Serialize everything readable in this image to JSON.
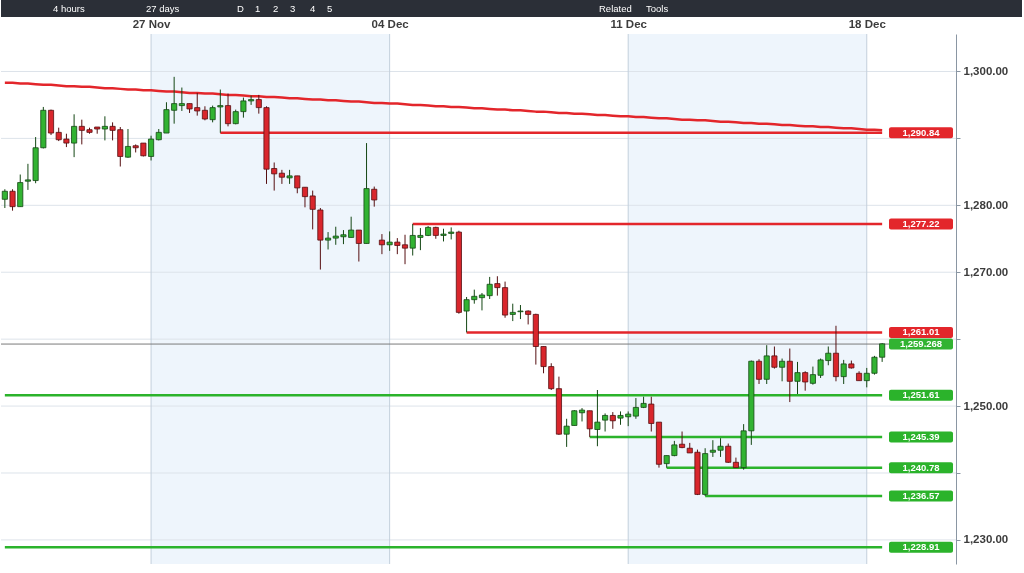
{
  "chart_data": {
    "type": "candlestick",
    "annotations": [
      "4 hours",
      "27 days",
      "D",
      "1",
      "2",
      "3",
      "4",
      "5",
      "Related",
      "Tools"
    ],
    "categories": [
      null,
      null,
      null,
      null,
      null,
      null,
      null,
      null,
      null,
      null,
      null,
      null,
      null,
      null,
      null,
      null,
      null,
      null,
      null,
      "27 Nov",
      null,
      null,
      null,
      null,
      null,
      null,
      null,
      null,
      null,
      null,
      null,
      null,
      null,
      null,
      null,
      null,
      null,
      null,
      null,
      null,
      null,
      null,
      null,
      null,
      null,
      null,
      null,
      null,
      null,
      null,
      "04 Dec",
      null,
      null,
      null,
      null,
      null,
      null,
      null,
      null,
      null,
      null,
      null,
      null,
      null,
      null,
      null,
      null,
      null,
      null,
      null,
      null,
      null,
      null,
      null,
      null,
      null,
      null,
      null,
      null,
      null,
      null,
      "11 Dec",
      null,
      null,
      null,
      null,
      null,
      null,
      null,
      null,
      null,
      null,
      null,
      null,
      null,
      null,
      null,
      null,
      null,
      null,
      null,
      null,
      null,
      null,
      null,
      null,
      null,
      null,
      null,
      null,
      null,
      null,
      "18 Dec",
      null,
      null
    ],
    "ohlc": [
      [
        1280.9,
        1282.4,
        1279.6,
        1282.1
      ],
      [
        1282.1,
        1282.4,
        1279.2,
        1279.8
      ],
      [
        1279.8,
        1284.6,
        1279.8,
        1283.4
      ],
      [
        1283.6,
        1286.2,
        1282.3,
        1283.8
      ],
      [
        1283.7,
        1290.2,
        1283.3,
        1288.6
      ],
      [
        1288.6,
        1294.7,
        1288.5,
        1294.2
      ],
      [
        1294.2,
        1294.3,
        1290.5,
        1290.8
      ],
      [
        1290.9,
        1291.6,
        1289.6,
        1289.8
      ],
      [
        1289.9,
        1290.7,
        1288.7,
        1289.3
      ],
      [
        1289.3,
        1293.6,
        1287.2,
        1291.8
      ],
      [
        1291.8,
        1292.8,
        1289.1,
        1291.2
      ],
      [
        1291.3,
        1291.6,
        1290.7,
        1290.9
      ],
      [
        1291.7,
        1291.7,
        1290.7,
        1291.4
      ],
      [
        1291.4,
        1293.3,
        1289.7,
        1291.8
      ],
      [
        1291.8,
        1292.4,
        1289.7,
        1291.2
      ],
      [
        1291.3,
        1291.7,
        1285.8,
        1287.3
      ],
      [
        1287.2,
        1291.4,
        1287.1,
        1288.8
      ],
      [
        1288.9,
        1289.1,
        1287.9,
        1288.6
      ],
      [
        1289.3,
        1289.3,
        1287.3,
        1287.4
      ],
      [
        1287.3,
        1290.4,
        1286.7,
        1289.9
      ],
      [
        1289.8,
        1291.4,
        1289.7,
        1290.9
      ],
      [
        1290.8,
        1295.4,
        1290.8,
        1294.3
      ],
      [
        1294.2,
        1299.2,
        1292.2,
        1295.2
      ],
      [
        1294.9,
        1297.6,
        1294.1,
        1295.2
      ],
      [
        1295.2,
        1295.2,
        1293.8,
        1294.4
      ],
      [
        1294.6,
        1296.8,
        1293.4,
        1294.1
      ],
      [
        1294.2,
        1294.8,
        1292.7,
        1292.9
      ],
      [
        1292.8,
        1294.9,
        1292.4,
        1294.6
      ],
      [
        1294.7,
        1297.3,
        1290.84,
        1294.9
      ],
      [
        1294.9,
        1296.7,
        1291.8,
        1292.2
      ],
      [
        1292.2,
        1294.3,
        1292.1,
        1294.0
      ],
      [
        1294.0,
        1296.1,
        1293.1,
        1295.6
      ],
      [
        1295.6,
        1296.4,
        1295.0,
        1295.8
      ],
      [
        1295.8,
        1296.5,
        1293.7,
        1294.6
      ],
      [
        1294.6,
        1294.8,
        1283.2,
        1285.4
      ],
      [
        1285.5,
        1286.4,
        1282.2,
        1284.7
      ],
      [
        1284.8,
        1285.3,
        1283.2,
        1284.2
      ],
      [
        1284.1,
        1285.3,
        1283.2,
        1284.4
      ],
      [
        1284.4,
        1284.4,
        1281.8,
        1282.6
      ],
      [
        1282.7,
        1282.7,
        1279.7,
        1281.3
      ],
      [
        1281.4,
        1282.2,
        1276.4,
        1279.4
      ],
      [
        1279.3,
        1279.6,
        1270.4,
        1274.8
      ],
      [
        1274.8,
        1276.0,
        1273.4,
        1275.1
      ],
      [
        1275.1,
        1276.8,
        1274.1,
        1275.4
      ],
      [
        1275.3,
        1276.3,
        1274.2,
        1275.6
      ],
      [
        1275.2,
        1278.3,
        1275.2,
        1276.3
      ],
      [
        1276.3,
        1276.3,
        1271.6,
        1274.3
      ],
      [
        1274.3,
        1289.3,
        1274.3,
        1282.5
      ],
      [
        1282.4,
        1282.8,
        1279.8,
        1280.8
      ],
      [
        1274.8,
        1275.7,
        1272.7,
        1274.1
      ],
      [
        1274.1,
        1276.1,
        1273.2,
        1274.5
      ],
      [
        1274.5,
        1275.1,
        1272.7,
        1274.0
      ],
      [
        1274.1,
        1275.6,
        1271.2,
        1273.6
      ],
      [
        1273.6,
        1277.22,
        1272.5,
        1275.5
      ],
      [
        1275.2,
        1276.6,
        1273.3,
        1275.5
      ],
      [
        1275.5,
        1276.9,
        1275.4,
        1276.7
      ],
      [
        1276.7,
        1276.8,
        1275.0,
        1275.5
      ],
      [
        1275.5,
        1276.5,
        1274.6,
        1275.7
      ],
      [
        1275.8,
        1276.7,
        1274.9,
        1276.0
      ],
      [
        1276.0,
        1276.2,
        1263.8,
        1264.0
      ],
      [
        1264.2,
        1266.3,
        1261.01,
        1265.9
      ],
      [
        1265.9,
        1267.4,
        1265.3,
        1266.4
      ],
      [
        1266.2,
        1266.9,
        1264.3,
        1266.6
      ],
      [
        1266.5,
        1269.3,
        1266.0,
        1268.2
      ],
      [
        1268.3,
        1269.4,
        1266.5,
        1267.7
      ],
      [
        1267.7,
        1268.6,
        1263.2,
        1263.6
      ],
      [
        1263.7,
        1265.3,
        1262.7,
        1264.0
      ],
      [
        1264.1,
        1265.1,
        1263.0,
        1264.2
      ],
      [
        1264.2,
        1264.3,
        1262.2,
        1263.7
      ],
      [
        1263.7,
        1263.8,
        1256.2,
        1258.9
      ],
      [
        1258.9,
        1258.9,
        1254.9,
        1255.9
      ],
      [
        1255.9,
        1256.4,
        1252.4,
        1252.6
      ],
      [
        1252.6,
        1254.4,
        1245.7,
        1245.8
      ],
      [
        1245.8,
        1248.1,
        1243.9,
        1247.0
      ],
      [
        1247.1,
        1249.4,
        1247.1,
        1249.3
      ],
      [
        1249.0,
        1249.7,
        1247.7,
        1249.4
      ],
      [
        1249.3,
        1249.3,
        1245.39,
        1246.6
      ],
      [
        1246.5,
        1252.4,
        1244.0,
        1247.6
      ],
      [
        1247.9,
        1248.9,
        1246.2,
        1248.6
      ],
      [
        1248.6,
        1249.1,
        1246.6,
        1247.8
      ],
      [
        1248.2,
        1249.2,
        1247.2,
        1248.6
      ],
      [
        1248.4,
        1249.2,
        1247.0,
        1248.8
      ],
      [
        1248.5,
        1251.2,
        1248.1,
        1249.8
      ],
      [
        1249.8,
        1251.4,
        1249.7,
        1250.4
      ],
      [
        1250.3,
        1251.4,
        1246.2,
        1247.4
      ],
      [
        1247.6,
        1247.6,
        1240.8,
        1241.3
      ],
      [
        1241.4,
        1242.6,
        1240.78,
        1242.6
      ],
      [
        1242.6,
        1244.8,
        1242.5,
        1244.2
      ],
      [
        1244.3,
        1246.2,
        1243.7,
        1243.8
      ],
      [
        1243.7,
        1244.5,
        1243.0,
        1243.0
      ],
      [
        1243.1,
        1243.5,
        1236.7,
        1236.8
      ],
      [
        1236.8,
        1243.7,
        1236.57,
        1242.9
      ],
      [
        1243.1,
        1244.9,
        1242.4,
        1243.4
      ],
      [
        1243.4,
        1245.2,
        1242.4,
        1244.0
      ],
      [
        1244.0,
        1244.4,
        1241.5,
        1241.6
      ],
      [
        1241.6,
        1242.3,
        1240.8,
        1240.8
      ],
      [
        1240.8,
        1247.3,
        1240.5,
        1246.3
      ],
      [
        1246.3,
        1256.8,
        1244.2,
        1256.7
      ],
      [
        1256.7,
        1257.0,
        1253.3,
        1254.0
      ],
      [
        1254.0,
        1259.1,
        1253.3,
        1257.5
      ],
      [
        1257.5,
        1258.9,
        1255.6,
        1255.8
      ],
      [
        1255.8,
        1257.1,
        1253.7,
        1256.7
      ],
      [
        1256.7,
        1258.6,
        1250.6,
        1253.7
      ],
      [
        1253.7,
        1256.6,
        1251.8,
        1255.0
      ],
      [
        1255.0,
        1255.2,
        1252.3,
        1253.6
      ],
      [
        1253.4,
        1255.9,
        1253.2,
        1254.7
      ],
      [
        1254.6,
        1257.1,
        1254.2,
        1256.9
      ],
      [
        1256.8,
        1258.9,
        1256.1,
        1257.9
      ],
      [
        1257.9,
        1262.0,
        1253.7,
        1254.4
      ],
      [
        1254.4,
        1256.9,
        1253.3,
        1256.3
      ],
      [
        1256.3,
        1256.8,
        1255.6,
        1255.7
      ],
      [
        1254.9,
        1255.2,
        1253.8,
        1253.8
      ],
      [
        1253.8,
        1255.7,
        1252.8,
        1254.9
      ],
      [
        1254.9,
        1257.5,
        1254.7,
        1257.3
      ],
      [
        1257.3,
        1259.4,
        1256.6,
        1259.3
      ]
    ],
    "colors": [
      "#32b332",
      "#d9262c",
      "#32b332",
      "#32b332",
      "#32b332",
      "#32b332",
      "#d9262c",
      "#d9262c",
      "#d9262c",
      "#32b332",
      "#d9262c",
      "#d9262c",
      "#d9262c",
      "#32b332",
      "#d9262c",
      "#d9262c",
      "#32b332",
      "#d9262c",
      "#d9262c",
      "#32b332",
      "#32b332",
      "#32b332",
      "#32b332",
      "#32b332",
      "#d9262c",
      "#d9262c",
      "#d9262c",
      "#32b332",
      "#32b332",
      "#d9262c",
      "#32b332",
      "#32b332",
      "#32b332",
      "#d9262c",
      "#d9262c",
      "#d9262c",
      "#d9262c",
      "#32b332",
      "#d9262c",
      "#d9262c",
      "#d9262c",
      "#d9262c",
      "#32b332",
      "#32b332",
      "#32b332",
      "#32b332",
      "#d9262c",
      "#32b332",
      "#d9262c",
      "#d9262c",
      "#32b332",
      "#d9262c",
      "#d9262c",
      "#32b332",
      "#32b332",
      "#32b332",
      "#d9262c",
      "#32b332",
      "#32b332",
      "#d9262c",
      "#32b332",
      "#32b332",
      "#32b332",
      "#32b332",
      "#d9262c",
      "#d9262c",
      "#32b332",
      "#32b332",
      "#d9262c",
      "#d9262c",
      "#d9262c",
      "#d9262c",
      "#d9262c",
      "#32b332",
      "#32b332",
      "#32b332",
      "#d9262c",
      "#32b332",
      "#32b332",
      "#d9262c",
      "#32b332",
      "#32b332",
      "#32b332",
      "#32b332",
      "#d9262c",
      "#d9262c",
      "#32b332",
      "#32b332",
      "#d9262c",
      "#d9262c",
      "#d9262c",
      "#32b332",
      "#32b332",
      "#32b332",
      "#d9262c",
      "#d9262c",
      "#32b332",
      "#32b332",
      "#d9262c",
      "#32b332",
      "#d9262c",
      "#32b332",
      "#d9262c",
      "#32b332",
      "#d9262c",
      "#32b332",
      "#32b332",
      "#32b332",
      "#d9262c",
      "#32b332",
      "#d9262c",
      "#d9262c",
      "#32b332",
      "#32b332",
      "#32b332"
    ],
    "series": [
      {
        "type": "line",
        "color": "#e3262b",
        "values": [
          1298.3,
          1298.3,
          1298.2,
          1298.2,
          1298.1,
          1298.0,
          1298.0,
          1297.9,
          1297.8,
          1297.8,
          1297.7,
          1297.7,
          1297.6,
          1297.5,
          1297.5,
          1297.4,
          1297.3,
          1297.3,
          1297.2,
          1297.2,
          1297.1,
          1297.0,
          1297.0,
          1296.9,
          1296.8,
          1296.8,
          1296.7,
          1296.7,
          1296.6,
          1296.5,
          1296.5,
          1296.4,
          1296.3,
          1296.3,
          1296.2,
          1296.2,
          1296.1,
          1296.0,
          1296.0,
          1295.9,
          1295.8,
          1295.8,
          1295.7,
          1295.7,
          1295.6,
          1295.5,
          1295.5,
          1295.4,
          1295.3,
          1295.3,
          1295.2,
          1295.2,
          1295.1,
          1295.0,
          1295.0,
          1294.9,
          1294.8,
          1294.8,
          1294.7,
          1294.7,
          1294.6,
          1294.5,
          1294.5,
          1294.4,
          1294.3,
          1294.3,
          1294.2,
          1294.2,
          1294.1,
          1294.0,
          1294.0,
          1293.9,
          1293.8,
          1293.8,
          1293.7,
          1293.7,
          1293.6,
          1293.5,
          1293.5,
          1293.4,
          1293.3,
          1293.3,
          1293.2,
          1293.2,
          1293.1,
          1293.0,
          1293.0,
          1292.9,
          1292.8,
          1292.8,
          1292.7,
          1292.7,
          1292.6,
          1292.5,
          1292.5,
          1292.4,
          1292.3,
          1292.3,
          1292.2,
          1292.2,
          1292.1,
          1292.0,
          1292.0,
          1291.9,
          1291.8,
          1291.8,
          1291.7,
          1291.7,
          1291.6,
          1291.5,
          1291.5,
          1291.4,
          1291.3,
          1291.3,
          1291.2
        ]
      },
      {
        "type": "line",
        "name": "1,290.84",
        "color": "#e3262b",
        "values": [
          null,
          null,
          null,
          null,
          null,
          null,
          null,
          null,
          null,
          null,
          null,
          null,
          null,
          null,
          null,
          null,
          null,
          null,
          null,
          null,
          null,
          null,
          null,
          null,
          null,
          null,
          null,
          null,
          1290.84,
          1290.84,
          1290.84,
          1290.84,
          1290.84,
          1290.84,
          1290.84,
          1290.84,
          1290.84,
          1290.84,
          1290.84,
          1290.84,
          1290.84,
          1290.84,
          1290.84,
          1290.84,
          1290.84,
          1290.84,
          1290.84,
          1290.84,
          1290.84,
          1290.84,
          1290.84,
          1290.84,
          1290.84,
          1290.84,
          1290.84,
          1290.84,
          1290.84,
          1290.84,
          1290.84,
          1290.84,
          1290.84,
          1290.84,
          1290.84,
          1290.84,
          1290.84,
          1290.84,
          1290.84,
          1290.84,
          1290.84,
          1290.84,
          1290.84,
          1290.84,
          1290.84,
          1290.84,
          1290.84,
          1290.84,
          1290.84,
          1290.84,
          1290.84,
          1290.84,
          1290.84,
          1290.84,
          1290.84,
          1290.84,
          1290.84,
          1290.84,
          1290.84,
          1290.84,
          1290.84,
          1290.84,
          1290.84,
          1290.84,
          1290.84,
          1290.84,
          1290.84,
          1290.84,
          1290.84,
          1290.84,
          1290.84,
          1290.84,
          1290.84,
          1290.84,
          1290.84,
          1290.84,
          1290.84,
          1290.84,
          1290.84,
          1290.84,
          1290.84,
          1290.84,
          1290.84,
          1290.84,
          1290.84,
          1290.84,
          1290.84
        ]
      },
      {
        "type": "line",
        "name": "1,277.22",
        "color": "#e3262b",
        "values": [
          null,
          null,
          null,
          null,
          null,
          null,
          null,
          null,
          null,
          null,
          null,
          null,
          null,
          null,
          null,
          null,
          null,
          null,
          null,
          null,
          null,
          null,
          null,
          null,
          null,
          null,
          null,
          null,
          null,
          null,
          null,
          null,
          null,
          null,
          null,
          null,
          null,
          null,
          null,
          null,
          null,
          null,
          null,
          null,
          null,
          null,
          null,
          null,
          null,
          null,
          null,
          null,
          null,
          1277.22,
          1277.22,
          1277.22,
          1277.22,
          1277.22,
          1277.22,
          1277.22,
          1277.22,
          1277.22,
          1277.22,
          1277.22,
          1277.22,
          1277.22,
          1277.22,
          1277.22,
          1277.22,
          1277.22,
          1277.22,
          1277.22,
          1277.22,
          1277.22,
          1277.22,
          1277.22,
          1277.22,
          1277.22,
          1277.22,
          1277.22,
          1277.22,
          1277.22,
          1277.22,
          1277.22,
          1277.22,
          1277.22,
          1277.22,
          1277.22,
          1277.22,
          1277.22,
          1277.22,
          1277.22,
          1277.22,
          1277.22,
          1277.22,
          1277.22,
          1277.22,
          1277.22,
          1277.22,
          1277.22,
          1277.22,
          1277.22,
          1277.22,
          1277.22,
          1277.22,
          1277.22,
          1277.22,
          1277.22,
          1277.22,
          1277.22,
          1277.22,
          1277.22,
          1277.22,
          1277.22,
          1277.22
        ]
      },
      {
        "type": "line",
        "name": "1,261.01",
        "color": "#e3262b",
        "values": [
          null,
          null,
          null,
          null,
          null,
          null,
          null,
          null,
          null,
          null,
          null,
          null,
          null,
          null,
          null,
          null,
          null,
          null,
          null,
          null,
          null,
          null,
          null,
          null,
          null,
          null,
          null,
          null,
          null,
          null,
          null,
          null,
          null,
          null,
          null,
          null,
          null,
          null,
          null,
          null,
          null,
          null,
          null,
          null,
          null,
          null,
          null,
          null,
          null,
          null,
          null,
          null,
          null,
          null,
          null,
          null,
          null,
          null,
          null,
          null,
          1261.01,
          1261.01,
          1261.01,
          1261.01,
          1261.01,
          1261.01,
          1261.01,
          1261.01,
          1261.01,
          1261.01,
          1261.01,
          1261.01,
          1261.01,
          1261.01,
          1261.01,
          1261.01,
          1261.01,
          1261.01,
          1261.01,
          1261.01,
          1261.01,
          1261.01,
          1261.01,
          1261.01,
          1261.01,
          1261.01,
          1261.01,
          1261.01,
          1261.01,
          1261.01,
          1261.01,
          1261.01,
          1261.01,
          1261.01,
          1261.01,
          1261.01,
          1261.01,
          1261.01,
          1261.01,
          1261.01,
          1261.01,
          1261.01,
          1261.01,
          1261.01,
          1261.01,
          1261.01,
          1261.01,
          1261.01,
          1261.01,
          1261.01,
          1261.01,
          1261.01,
          1261.01,
          1261.01,
          1261.01
        ]
      },
      {
        "type": "line",
        "name": "1,251.61",
        "color": "#2bb32b",
        "values": [
          1251.61,
          1251.61,
          1251.61,
          1251.61,
          1251.61,
          1251.61,
          1251.61,
          1251.61,
          1251.61,
          1251.61,
          1251.61,
          1251.61,
          1251.61,
          1251.61,
          1251.61,
          1251.61,
          1251.61,
          1251.61,
          1251.61,
          1251.61,
          1251.61,
          1251.61,
          1251.61,
          1251.61,
          1251.61,
          1251.61,
          1251.61,
          1251.61,
          1251.61,
          1251.61,
          1251.61,
          1251.61,
          1251.61,
          1251.61,
          1251.61,
          1251.61,
          1251.61,
          1251.61,
          1251.61,
          1251.61,
          1251.61,
          1251.61,
          1251.61,
          1251.61,
          1251.61,
          1251.61,
          1251.61,
          1251.61,
          1251.61,
          1251.61,
          1251.61,
          1251.61,
          1251.61,
          1251.61,
          1251.61,
          1251.61,
          1251.61,
          1251.61,
          1251.61,
          1251.61,
          1251.61,
          1251.61,
          1251.61,
          1251.61,
          1251.61,
          1251.61,
          1251.61,
          1251.61,
          1251.61,
          1251.61,
          1251.61,
          1251.61,
          1251.61,
          1251.61,
          1251.61,
          1251.61,
          1251.61,
          1251.61,
          1251.61,
          1251.61,
          1251.61,
          1251.61,
          1251.61,
          1251.61,
          1251.61,
          1251.61,
          1251.61,
          1251.61,
          1251.61,
          1251.61,
          1251.61,
          1251.61,
          1251.61,
          1251.61,
          1251.61,
          1251.61,
          1251.61,
          1251.61,
          1251.61,
          1251.61,
          1251.61,
          1251.61,
          1251.61,
          1251.61,
          1251.61,
          1251.61,
          1251.61,
          1251.61,
          1251.61,
          1251.61,
          1251.61,
          1251.61,
          1251.61,
          1251.61,
          1251.61
        ]
      },
      {
        "type": "line",
        "name": "1,245.39",
        "color": "#2bb32b",
        "values": [
          null,
          null,
          null,
          null,
          null,
          null,
          null,
          null,
          null,
          null,
          null,
          null,
          null,
          null,
          null,
          null,
          null,
          null,
          null,
          null,
          null,
          null,
          null,
          null,
          null,
          null,
          null,
          null,
          null,
          null,
          null,
          null,
          null,
          null,
          null,
          null,
          null,
          null,
          null,
          null,
          null,
          null,
          null,
          null,
          null,
          null,
          null,
          null,
          null,
          null,
          null,
          null,
          null,
          null,
          null,
          null,
          null,
          null,
          null,
          null,
          null,
          null,
          null,
          null,
          null,
          null,
          null,
          null,
          null,
          null,
          null,
          null,
          null,
          null,
          null,
          null,
          1245.39,
          1245.39,
          1245.39,
          1245.39,
          1245.39,
          1245.39,
          1245.39,
          1245.39,
          1245.39,
          1245.39,
          1245.39,
          1245.39,
          1245.39,
          1245.39,
          1245.39,
          1245.39,
          1245.39,
          1245.39,
          1245.39,
          1245.39,
          1245.39,
          1245.39,
          1245.39,
          1245.39,
          1245.39,
          1245.39,
          1245.39,
          1245.39,
          1245.39,
          1245.39,
          1245.39,
          1245.39,
          1245.39,
          1245.39,
          1245.39,
          1245.39,
          1245.39,
          1245.39,
          1245.39
        ]
      },
      {
        "type": "line",
        "name": "1,240.78",
        "color": "#2bb32b",
        "values": [
          null,
          null,
          null,
          null,
          null,
          null,
          null,
          null,
          null,
          null,
          null,
          null,
          null,
          null,
          null,
          null,
          null,
          null,
          null,
          null,
          null,
          null,
          null,
          null,
          null,
          null,
          null,
          null,
          null,
          null,
          null,
          null,
          null,
          null,
          null,
          null,
          null,
          null,
          null,
          null,
          null,
          null,
          null,
          null,
          null,
          null,
          null,
          null,
          null,
          null,
          null,
          null,
          null,
          null,
          null,
          null,
          null,
          null,
          null,
          null,
          null,
          null,
          null,
          null,
          null,
          null,
          null,
          null,
          null,
          null,
          null,
          null,
          null,
          null,
          null,
          null,
          null,
          null,
          null,
          null,
          null,
          null,
          null,
          null,
          null,
          null,
          1240.78,
          1240.78,
          1240.78,
          1240.78,
          1240.78,
          1240.78,
          1240.78,
          1240.78,
          1240.78,
          1240.78,
          1240.78,
          1240.78,
          1240.78,
          1240.78,
          1240.78,
          1240.78,
          1240.78,
          1240.78,
          1240.78,
          1240.78,
          1240.78,
          1240.78,
          1240.78,
          1240.78,
          1240.78,
          1240.78,
          1240.78,
          1240.78,
          1240.78
        ]
      },
      {
        "type": "line",
        "name": "1,236.57",
        "color": "#2bb32b",
        "values": [
          null,
          null,
          null,
          null,
          null,
          null,
          null,
          null,
          null,
          null,
          null,
          null,
          null,
          null,
          null,
          null,
          null,
          null,
          null,
          null,
          null,
          null,
          null,
          null,
          null,
          null,
          null,
          null,
          null,
          null,
          null,
          null,
          null,
          null,
          null,
          null,
          null,
          null,
          null,
          null,
          null,
          null,
          null,
          null,
          null,
          null,
          null,
          null,
          null,
          null,
          null,
          null,
          null,
          null,
          null,
          null,
          null,
          null,
          null,
          null,
          null,
          null,
          null,
          null,
          null,
          null,
          null,
          null,
          null,
          null,
          null,
          null,
          null,
          null,
          null,
          null,
          null,
          null,
          null,
          null,
          null,
          null,
          null,
          null,
          null,
          null,
          null,
          null,
          null,
          null,
          null,
          1236.57,
          1236.57,
          1236.57,
          1236.57,
          1236.57,
          1236.57,
          1236.57,
          1236.57,
          1236.57,
          1236.57,
          1236.57,
          1236.57,
          1236.57,
          1236.57,
          1236.57,
          1236.57,
          1236.57,
          1236.57,
          1236.57,
          1236.57,
          1236.57,
          1236.57,
          1236.57,
          1236.57
        ]
      },
      {
        "type": "line",
        "name": "1,228.91",
        "color": "#2bb32b",
        "values": [
          1228.91,
          1228.91,
          1228.91,
          1228.91,
          1228.91,
          1228.91,
          1228.91,
          1228.91,
          1228.91,
          1228.91,
          1228.91,
          1228.91,
          1228.91,
          1228.91,
          1228.91,
          1228.91,
          1228.91,
          1228.91,
          1228.91,
          1228.91,
          1228.91,
          1228.91,
          1228.91,
          1228.91,
          1228.91,
          1228.91,
          1228.91,
          1228.91,
          1228.91,
          1228.91,
          1228.91,
          1228.91,
          1228.91,
          1228.91,
          1228.91,
          1228.91,
          1228.91,
          1228.91,
          1228.91,
          1228.91,
          1228.91,
          1228.91,
          1228.91,
          1228.91,
          1228.91,
          1228.91,
          1228.91,
          1228.91,
          1228.91,
          1228.91,
          1228.91,
          1228.91,
          1228.91,
          1228.91,
          1228.91,
          1228.91,
          1228.91,
          1228.91,
          1228.91,
          1228.91,
          1228.91,
          1228.91,
          1228.91,
          1228.91,
          1228.91,
          1228.91,
          1228.91,
          1228.91,
          1228.91,
          1228.91,
          1228.91,
          1228.91,
          1228.91,
          1228.91,
          1228.91,
          1228.91,
          1228.91,
          1228.91,
          1228.91,
          1228.91,
          1228.91,
          1228.91,
          1228.91,
          1228.91,
          1228.91,
          1228.91,
          1228.91,
          1228.91,
          1228.91,
          1228.91,
          1228.91,
          1228.91,
          1228.91,
          1228.91,
          1228.91,
          1228.91,
          1228.91,
          1228.91,
          1228.91,
          1228.91,
          1228.91,
          1228.91,
          1228.91,
          1228.91,
          1228.91,
          1228.91,
          1228.91,
          1228.91,
          1228.91,
          1228.91,
          1228.91,
          1228.91,
          1228.91,
          1228.91,
          1228.91
        ]
      }
    ],
    "ylim": [
      1226.4,
      1305.6
    ],
    "yticks": [
      {
        "value": 1230,
        "label": "1,230.00"
      },
      {
        "value": 1240,
        "label": null
      },
      {
        "value": 1250,
        "label": "1,250.00"
      },
      {
        "value": 1260,
        "label": null
      },
      {
        "value": 1270,
        "label": "1,270.00"
      },
      {
        "value": 1280,
        "label": "1,280.00"
      },
      {
        "value": 1290,
        "label": null
      },
      {
        "value": 1300,
        "label": "1,300.00"
      }
    ],
    "ref_lines": [
      {
        "axis": "y",
        "value": 1259.268,
        "label": "1,259.268",
        "color": "#7a7a7a"
      }
    ],
    "bands": [
      {
        "axis": "x",
        "from": "27 Nov",
        "to": "04 Dec",
        "color": "#eef5fc"
      },
      {
        "axis": "x",
        "from": "11 Dec",
        "to": "18 Dec",
        "color": "#eef5fc"
      }
    ],
    "grid": true
  }
}
